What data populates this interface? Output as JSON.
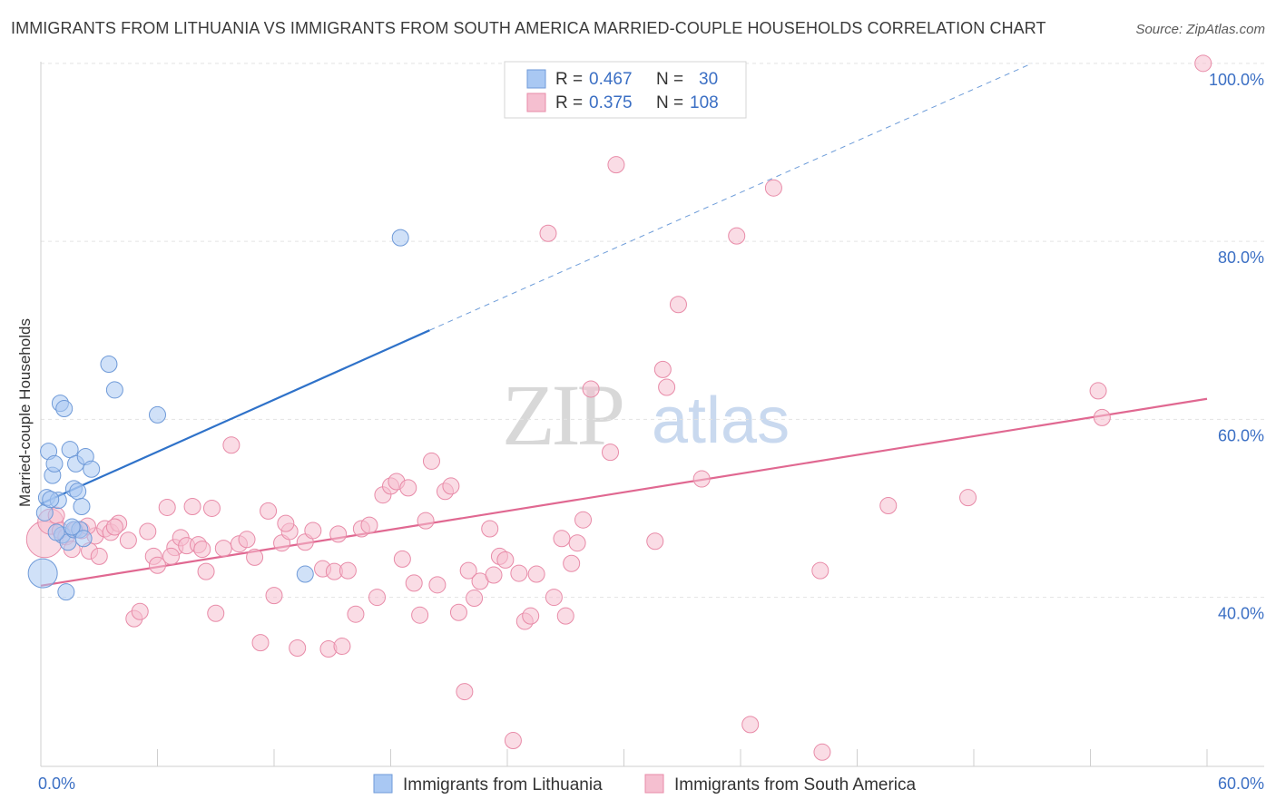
{
  "title": "IMMIGRANTS FROM LITHUANIA VS IMMIGRANTS FROM SOUTH AMERICA MARRIED-COUPLE HOUSEHOLDS CORRELATION CHART",
  "source": "Source: ZipAtlas.com",
  "watermark": {
    "zip": "ZIP",
    "atlas": "atlas"
  },
  "legend_top": {
    "rows": [
      {
        "r_label": "R =",
        "r_value": "0.467",
        "n_label": "N =",
        "n_value": "30"
      },
      {
        "r_label": "R =",
        "r_value": "0.375",
        "n_label": "N =",
        "n_value": "108"
      }
    ]
  },
  "colors": {
    "lithuania_fill": "#a9c8f3",
    "lithuania_stroke": "#6f9ad8",
    "lithuania_line": "#2f72c9",
    "southamerica_fill": "#f5bfd0",
    "southamerica_stroke": "#e88ba8",
    "southamerica_line": "#e06891",
    "axis_label": "#3b6fc4",
    "grid": "#e3e3e3"
  },
  "chart_data": {
    "type": "scatter",
    "xlabel": "",
    "ylabel": "Married-couple Households",
    "xlim": [
      0,
      60
    ],
    "ylim": [
      21,
      101
    ],
    "x_tick_labels": [
      {
        "value": 0,
        "label": "0.0%"
      },
      {
        "value": 60,
        "label": "60.0%"
      }
    ],
    "y_tick_labels": [
      {
        "value": 40,
        "label": "40.0%"
      },
      {
        "value": 60,
        "label": "60.0%"
      },
      {
        "value": 80,
        "label": "80.0%"
      },
      {
        "value": 100,
        "label": "100.0%"
      }
    ],
    "grid": true,
    "legend_position": "bottom",
    "series": [
      {
        "name": "Immigrants from Lithuania",
        "r": 0.467,
        "n": 30,
        "trend": {
          "x0": 0,
          "y0": 50.5,
          "x1": 20,
          "y1": 70,
          "dash_to_x": 51,
          "dash_to_y": 100
        },
        "points": [
          [
            0.1,
            42.7,
            16
          ],
          [
            0.2,
            49.5,
            9
          ],
          [
            0.3,
            51.2,
            9
          ],
          [
            0.4,
            56.4,
            9
          ],
          [
            0.6,
            53.7,
            9
          ],
          [
            0.7,
            55.0,
            9
          ],
          [
            0.9,
            50.9,
            9
          ],
          [
            1.0,
            61.8,
            9
          ],
          [
            1.2,
            61.2,
            9
          ],
          [
            1.1,
            47.0,
            9
          ],
          [
            1.3,
            40.6,
            9
          ],
          [
            1.4,
            46.2,
            9
          ],
          [
            1.5,
            56.6,
            9
          ],
          [
            1.7,
            47.6,
            9
          ],
          [
            1.7,
            52.2,
            9
          ],
          [
            1.8,
            55.0,
            9
          ],
          [
            1.9,
            51.9,
            9
          ],
          [
            2.0,
            47.6,
            9
          ],
          [
            2.1,
            50.2,
            9
          ],
          [
            2.2,
            46.6,
            9
          ],
          [
            2.3,
            55.8,
            9
          ],
          [
            2.6,
            54.4,
            9
          ],
          [
            3.5,
            66.2,
            9
          ],
          [
            3.8,
            63.3,
            9
          ],
          [
            6.0,
            60.5,
            9
          ],
          [
            13.6,
            42.6,
            9
          ],
          [
            18.5,
            80.4,
            9
          ],
          [
            0.5,
            51.0,
            9
          ],
          [
            0.8,
            47.3,
            9
          ],
          [
            1.6,
            47.9,
            9
          ]
        ]
      },
      {
        "name": "Immigrants from South America",
        "r": 0.375,
        "n": 108,
        "trend": {
          "x0": 0,
          "y0": 41.3,
          "x1": 60,
          "y1": 62.3
        },
        "points": [
          [
            0.2,
            46.5,
            20
          ],
          [
            0.5,
            48.5,
            14
          ],
          [
            0.8,
            49.2,
            9
          ],
          [
            1.0,
            47.5,
            9
          ],
          [
            1.3,
            46.8,
            9
          ],
          [
            1.6,
            45.4,
            9
          ],
          [
            1.8,
            47.6,
            9
          ],
          [
            2.1,
            47.5,
            9
          ],
          [
            2.5,
            45.2,
            9
          ],
          [
            2.8,
            46.9,
            9
          ],
          [
            3.0,
            44.6,
            9
          ],
          [
            3.3,
            47.7,
            9
          ],
          [
            3.6,
            47.3,
            9
          ],
          [
            4.0,
            48.3,
            9
          ],
          [
            4.5,
            46.4,
            9
          ],
          [
            4.8,
            37.6,
            9
          ],
          [
            5.1,
            38.4,
            9
          ],
          [
            5.5,
            47.4,
            9
          ],
          [
            5.8,
            44.6,
            9
          ],
          [
            6.0,
            43.6,
            9
          ],
          [
            6.5,
            50.1,
            9
          ],
          [
            6.9,
            45.6,
            9
          ],
          [
            7.2,
            46.7,
            9
          ],
          [
            7.5,
            45.8,
            9
          ],
          [
            7.8,
            50.2,
            9
          ],
          [
            8.1,
            45.9,
            9
          ],
          [
            8.5,
            42.9,
            9
          ],
          [
            8.8,
            50.0,
            9
          ],
          [
            9.0,
            38.2,
            9
          ],
          [
            9.4,
            45.5,
            9
          ],
          [
            9.8,
            57.1,
            9
          ],
          [
            10.2,
            46.0,
            9
          ],
          [
            10.6,
            46.5,
            9
          ],
          [
            11.0,
            44.5,
            9
          ],
          [
            11.3,
            34.9,
            9
          ],
          [
            11.7,
            49.7,
            9
          ],
          [
            12.0,
            40.2,
            9
          ],
          [
            12.4,
            46.1,
            9
          ],
          [
            12.8,
            47.4,
            9
          ],
          [
            13.2,
            34.3,
            9
          ],
          [
            13.6,
            46.2,
            9
          ],
          [
            14.0,
            47.5,
            9
          ],
          [
            14.5,
            43.2,
            9
          ],
          [
            14.8,
            34.2,
            9
          ],
          [
            15.1,
            42.9,
            9
          ],
          [
            15.5,
            34.5,
            9
          ],
          [
            15.8,
            43.0,
            9
          ],
          [
            16.2,
            38.1,
            9
          ],
          [
            16.5,
            47.7,
            9
          ],
          [
            16.9,
            48.1,
            9
          ],
          [
            17.3,
            40.0,
            9
          ],
          [
            17.6,
            51.5,
            9
          ],
          [
            18.0,
            52.5,
            9
          ],
          [
            18.3,
            53.0,
            9
          ],
          [
            18.6,
            44.3,
            9
          ],
          [
            18.9,
            52.3,
            9
          ],
          [
            19.2,
            41.6,
            9
          ],
          [
            19.5,
            38.0,
            9
          ],
          [
            20.1,
            55.3,
            9
          ],
          [
            20.4,
            41.4,
            9
          ],
          [
            20.8,
            51.9,
            9
          ],
          [
            21.1,
            52.5,
            9
          ],
          [
            21.5,
            38.3,
            9
          ],
          [
            21.8,
            29.4,
            9
          ],
          [
            22.0,
            43.0,
            9
          ],
          [
            22.3,
            39.9,
            9
          ],
          [
            22.6,
            41.8,
            9
          ],
          [
            23.1,
            47.7,
            9
          ],
          [
            23.3,
            42.5,
            9
          ],
          [
            23.6,
            44.6,
            9
          ],
          [
            23.9,
            44.2,
            9
          ],
          [
            24.3,
            23.9,
            9
          ],
          [
            24.6,
            42.7,
            9
          ],
          [
            24.9,
            37.3,
            9
          ],
          [
            25.2,
            37.9,
            9
          ],
          [
            25.5,
            42.6,
            9
          ],
          [
            26.1,
            80.9,
            9
          ],
          [
            26.4,
            40.0,
            9
          ],
          [
            27.0,
            37.9,
            9
          ],
          [
            27.3,
            43.8,
            9
          ],
          [
            27.6,
            46.1,
            9
          ],
          [
            27.9,
            48.7,
            9
          ],
          [
            28.3,
            63.4,
            9
          ],
          [
            29.3,
            56.3,
            9
          ],
          [
            29.6,
            88.6,
            9
          ],
          [
            31.6,
            46.3,
            9
          ],
          [
            32.0,
            65.6,
            9
          ],
          [
            32.2,
            63.6,
            9
          ],
          [
            32.8,
            72.9,
            9
          ],
          [
            34.0,
            53.3,
            9
          ],
          [
            35.8,
            80.6,
            9
          ],
          [
            36.5,
            25.7,
            9
          ],
          [
            37.7,
            86.0,
            9
          ],
          [
            40.2,
            22.6,
            9
          ],
          [
            40.1,
            43.0,
            9
          ],
          [
            43.6,
            50.3,
            9
          ],
          [
            47.7,
            51.2,
            9
          ],
          [
            54.4,
            63.2,
            9
          ],
          [
            54.6,
            60.2,
            9
          ],
          [
            59.8,
            100.0,
            9
          ],
          [
            6.7,
            44.6,
            9
          ],
          [
            3.8,
            47.9,
            9
          ],
          [
            8.3,
            45.4,
            9
          ],
          [
            12.6,
            48.3,
            9
          ],
          [
            15.3,
            47.1,
            9
          ],
          [
            19.8,
            48.6,
            9
          ],
          [
            26.8,
            46.6,
            9
          ],
          [
            2.4,
            48.0,
            9
          ]
        ]
      }
    ]
  },
  "bottom_legend": [
    {
      "label": "Immigrants from Lithuania"
    },
    {
      "label": "Immigrants from South America"
    }
  ]
}
